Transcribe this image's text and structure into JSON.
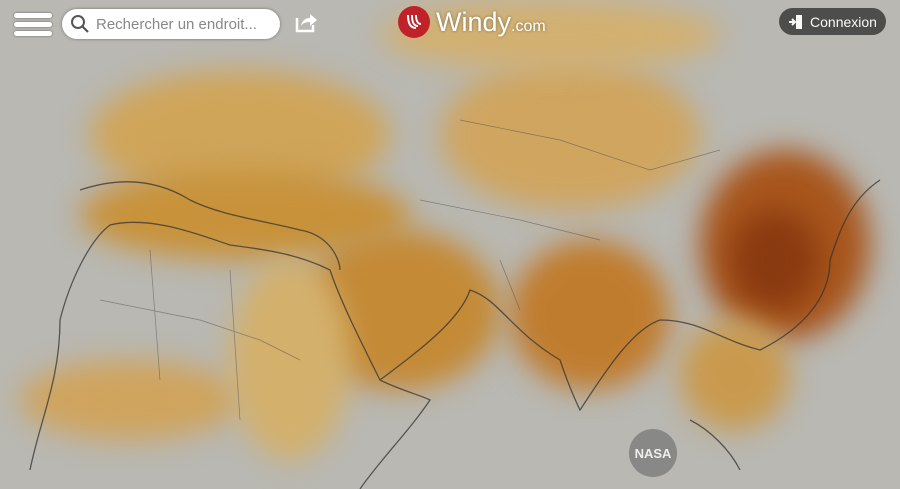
{
  "header": {
    "menu_icon": "hamburger-icon",
    "search": {
      "placeholder": "Rechercher un endroit...",
      "value": ""
    },
    "share_icon": "share-icon",
    "logo": {
      "name": "Windy",
      "domain": ".com",
      "color": "#c0222a"
    },
    "login": {
      "label": "Connexion",
      "icon": "login-icon"
    }
  },
  "map": {
    "layer": "dust",
    "colors": {
      "background": "#b9b8b2",
      "light_dust": "#d9c58a",
      "medium_dust": "#c8902e",
      "heavy_dust": "#8a3a10"
    },
    "attribution": "NASA"
  }
}
